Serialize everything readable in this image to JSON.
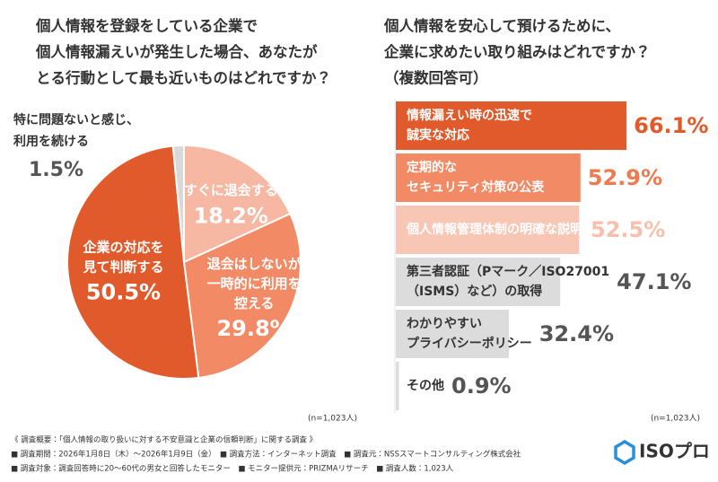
{
  "chart_data": [
    {
      "type": "pie",
      "title": [
        "個人情報を登録をしている企業で",
        "個人情報漏えいが発生した場合、あなたが",
        "とる行動として最も近いものはどれですか？"
      ],
      "categories": [
        "すぐに退会する",
        "退会はしないが\n一時的に利用を\n控える",
        "企業の対応を\n見て判断する",
        "特に問題ないと感じ、\n利用を続ける"
      ],
      "values": [
        18.2,
        29.8,
        50.5,
        1.5
      ],
      "value_labels": [
        "18.2%",
        "29.8%",
        "50.5%",
        "1.5%"
      ],
      "colors": [
        "#f6b8a2",
        "#f28a66",
        "#e05a2b",
        "#d9d9d9"
      ],
      "note": "(n=1,023人)"
    },
    {
      "type": "bar",
      "title": [
        "個人情報を安心して預けるために、",
        "企業に求めたい取り組みはどれですか？",
        "（複数回答可）"
      ],
      "categories": [
        "情報漏えい時の迅速で\n誠実な対応",
        "定期的な\nセキュリティ対策の公表",
        "個人情報管理体制の明確な説明",
        "第三者認証（Pマーク／ISO27001\n（ISMS）など）の取得",
        "わかりやすい\nプライバシーポリシー",
        "その他"
      ],
      "values": [
        66.1,
        52.9,
        52.5,
        47.1,
        32.4,
        0.9
      ],
      "value_labels": [
        "66.1%",
        "52.9%",
        "52.5%",
        "47.1%",
        "32.4%",
        "0.9%"
      ],
      "colors": [
        "#e05a2b",
        "#f28a66",
        "#f8c6b4",
        "#dcdcdc",
        "#dcdcdc",
        "#dcdcdc"
      ],
      "label_colors": [
        "#ffffff",
        "#ffffff",
        "#ffffff",
        "#333333",
        "#333333",
        "#333333"
      ],
      "value_label_colors": [
        "#e05a2b",
        "#f07a50",
        "#f8c0ac",
        "#555555",
        "#555555",
        "#555555"
      ],
      "note": "(n=1,023人)"
    }
  ],
  "footer": [
    "《 調査概要：「個人情報の取り扱いに対する不安意識と企業の信頼判断」に関する調査 》",
    "■ 調査期間：2026年1月8日（木）～2026年1月9日（金）　■ 調査方法：インターネット調査　■ 調査元：NSSスマートコンサルティング株式会社",
    "■ 調査対象：調査回答時に20～60代の男女と回答したモニター　■ モニター提供元：PRIZMAリサーチ　■ 調査人数：1,023人"
  ],
  "logo": "ISOプロ"
}
